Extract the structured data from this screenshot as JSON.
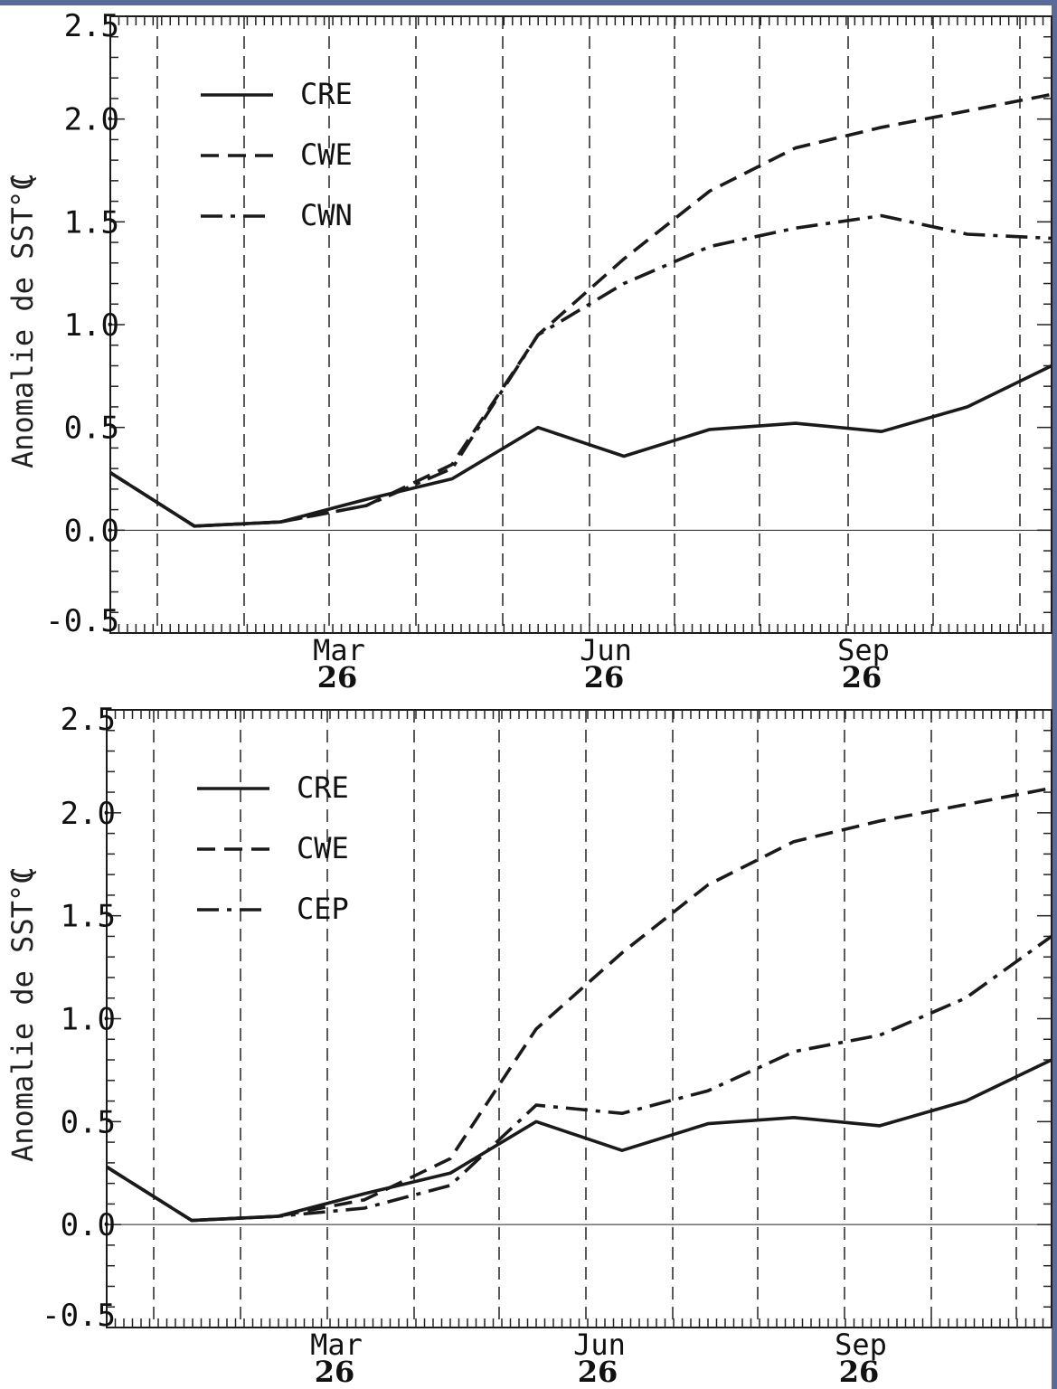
{
  "chart_data": [
    {
      "type": "line",
      "title": "",
      "ylabel": "Anomalie de SST (",
      "ylabel_overlay": "°C",
      "ylim": [
        -0.5,
        2.5
      ],
      "yticks": [
        "2.5",
        "2.0",
        "1.5",
        "1.0",
        "0.5",
        "0.0",
        "-0.5"
      ],
      "xticks": [
        {
          "month": "Mar",
          "year": "26"
        },
        {
          "month": "Jun",
          "year": "26"
        },
        {
          "month": "Sep",
          "year": "26"
        }
      ],
      "grid": "vertical-dashed",
      "legend_placement": "top-left",
      "series": [
        {
          "name": "CRE",
          "style": "solid",
          "values": [
            0.28,
            0.02,
            0.04,
            0.15,
            0.25,
            0.5,
            0.36,
            0.49,
            0.52,
            0.48,
            0.6,
            0.8
          ]
        },
        {
          "name": "CWE",
          "style": "dashed",
          "values": [
            0.28,
            0.02,
            0.04,
            0.12,
            0.32,
            0.95,
            1.32,
            1.65,
            1.86,
            1.96,
            2.04,
            2.12
          ]
        },
        {
          "name": "CWN",
          "style": "dashdot",
          "values": [
            0.28,
            0.02,
            0.04,
            0.12,
            0.3,
            0.95,
            1.2,
            1.38,
            1.47,
            1.53,
            1.44,
            1.42
          ]
        }
      ]
    },
    {
      "type": "line",
      "title": "",
      "ylabel": "Anomalie de SST (",
      "ylabel_overlay": "°C",
      "ylim": [
        -0.5,
        2.5
      ],
      "yticks": [
        "2.5",
        "2.0",
        "1.5",
        "1.0",
        "0.5",
        "0.0",
        "-0.5"
      ],
      "xticks": [
        {
          "month": "Mar",
          "year": "26"
        },
        {
          "month": "Jun",
          "year": "26"
        },
        {
          "month": "Sep",
          "year": "26"
        }
      ],
      "grid": "vertical-dashed",
      "legend_placement": "top-left",
      "series": [
        {
          "name": "CRE",
          "style": "solid",
          "values": [
            0.28,
            0.02,
            0.04,
            0.15,
            0.25,
            0.5,
            0.36,
            0.49,
            0.52,
            0.48,
            0.6,
            0.8
          ]
        },
        {
          "name": "CWE",
          "style": "dashed",
          "values": [
            0.28,
            0.02,
            0.04,
            0.12,
            0.32,
            0.95,
            1.32,
            1.65,
            1.86,
            1.96,
            2.04,
            2.12
          ]
        },
        {
          "name": "CEP",
          "style": "dashdot",
          "values": [
            0.28,
            0.02,
            0.04,
            0.08,
            0.19,
            0.58,
            0.54,
            0.65,
            0.84,
            0.92,
            1.1,
            1.4
          ]
        }
      ]
    }
  ],
  "colors": {
    "line": "#1a1a1a",
    "background": "#ffffff",
    "border_accent": "#5a6a99"
  }
}
